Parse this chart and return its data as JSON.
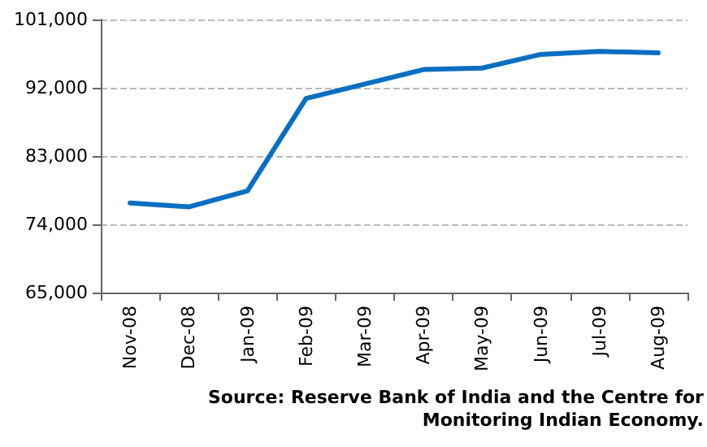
{
  "chart_data": {
    "type": "line",
    "categories": [
      "Nov-08",
      "Dec-08",
      "Jan-09",
      "Feb-09",
      "Mar-09",
      "Apr-09",
      "May-09",
      "Jun-09",
      "Jul-09",
      "Aug-09"
    ],
    "series": [
      {
        "color": "#0a6fc2",
        "values": [
          76800,
          76300,
          78400,
          90600,
          92500,
          94400,
          94600,
          96400,
          96800,
          96600
        ]
      }
    ],
    "ylim": [
      65000,
      101000
    ],
    "yticks": [
      {
        "value": 65000,
        "label": "65,000"
      },
      {
        "value": 74000,
        "label": "74,000"
      },
      {
        "value": 83000,
        "label": "83,000"
      },
      {
        "value": 92000,
        "label": "92,000"
      },
      {
        "value": 101000,
        "label": "101,000"
      }
    ],
    "grid": "y",
    "marker": "none",
    "line_style": "solid",
    "annotations": [
      "Source: Reserve Bank of India and the Centre for Monitoring Indian Economy."
    ]
  }
}
